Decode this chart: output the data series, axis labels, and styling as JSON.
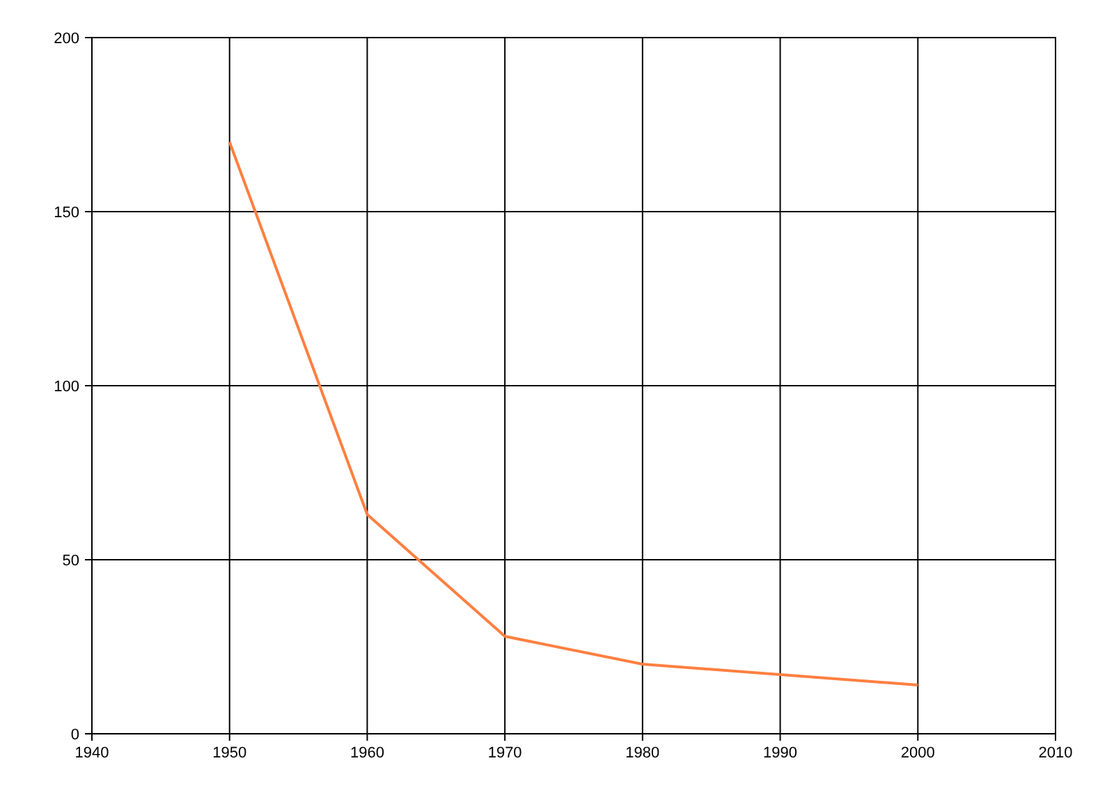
{
  "chart_data": {
    "type": "line",
    "x": [
      1950,
      1960,
      1970,
      1980,
      1990,
      2000
    ],
    "series": [
      {
        "color": "#ff7f40",
        "values": [
          170,
          63,
          28,
          20,
          17,
          14
        ]
      }
    ],
    "xlim": [
      1940,
      2010
    ],
    "xticks": [
      1940,
      1950,
      1960,
      1970,
      1980,
      1990,
      2000,
      2010
    ],
    "ylim": [
      0,
      200
    ],
    "yticks": [
      0,
      50,
      100,
      150,
      200
    ],
    "grid": true,
    "marker": "none",
    "line_style": "solid"
  }
}
